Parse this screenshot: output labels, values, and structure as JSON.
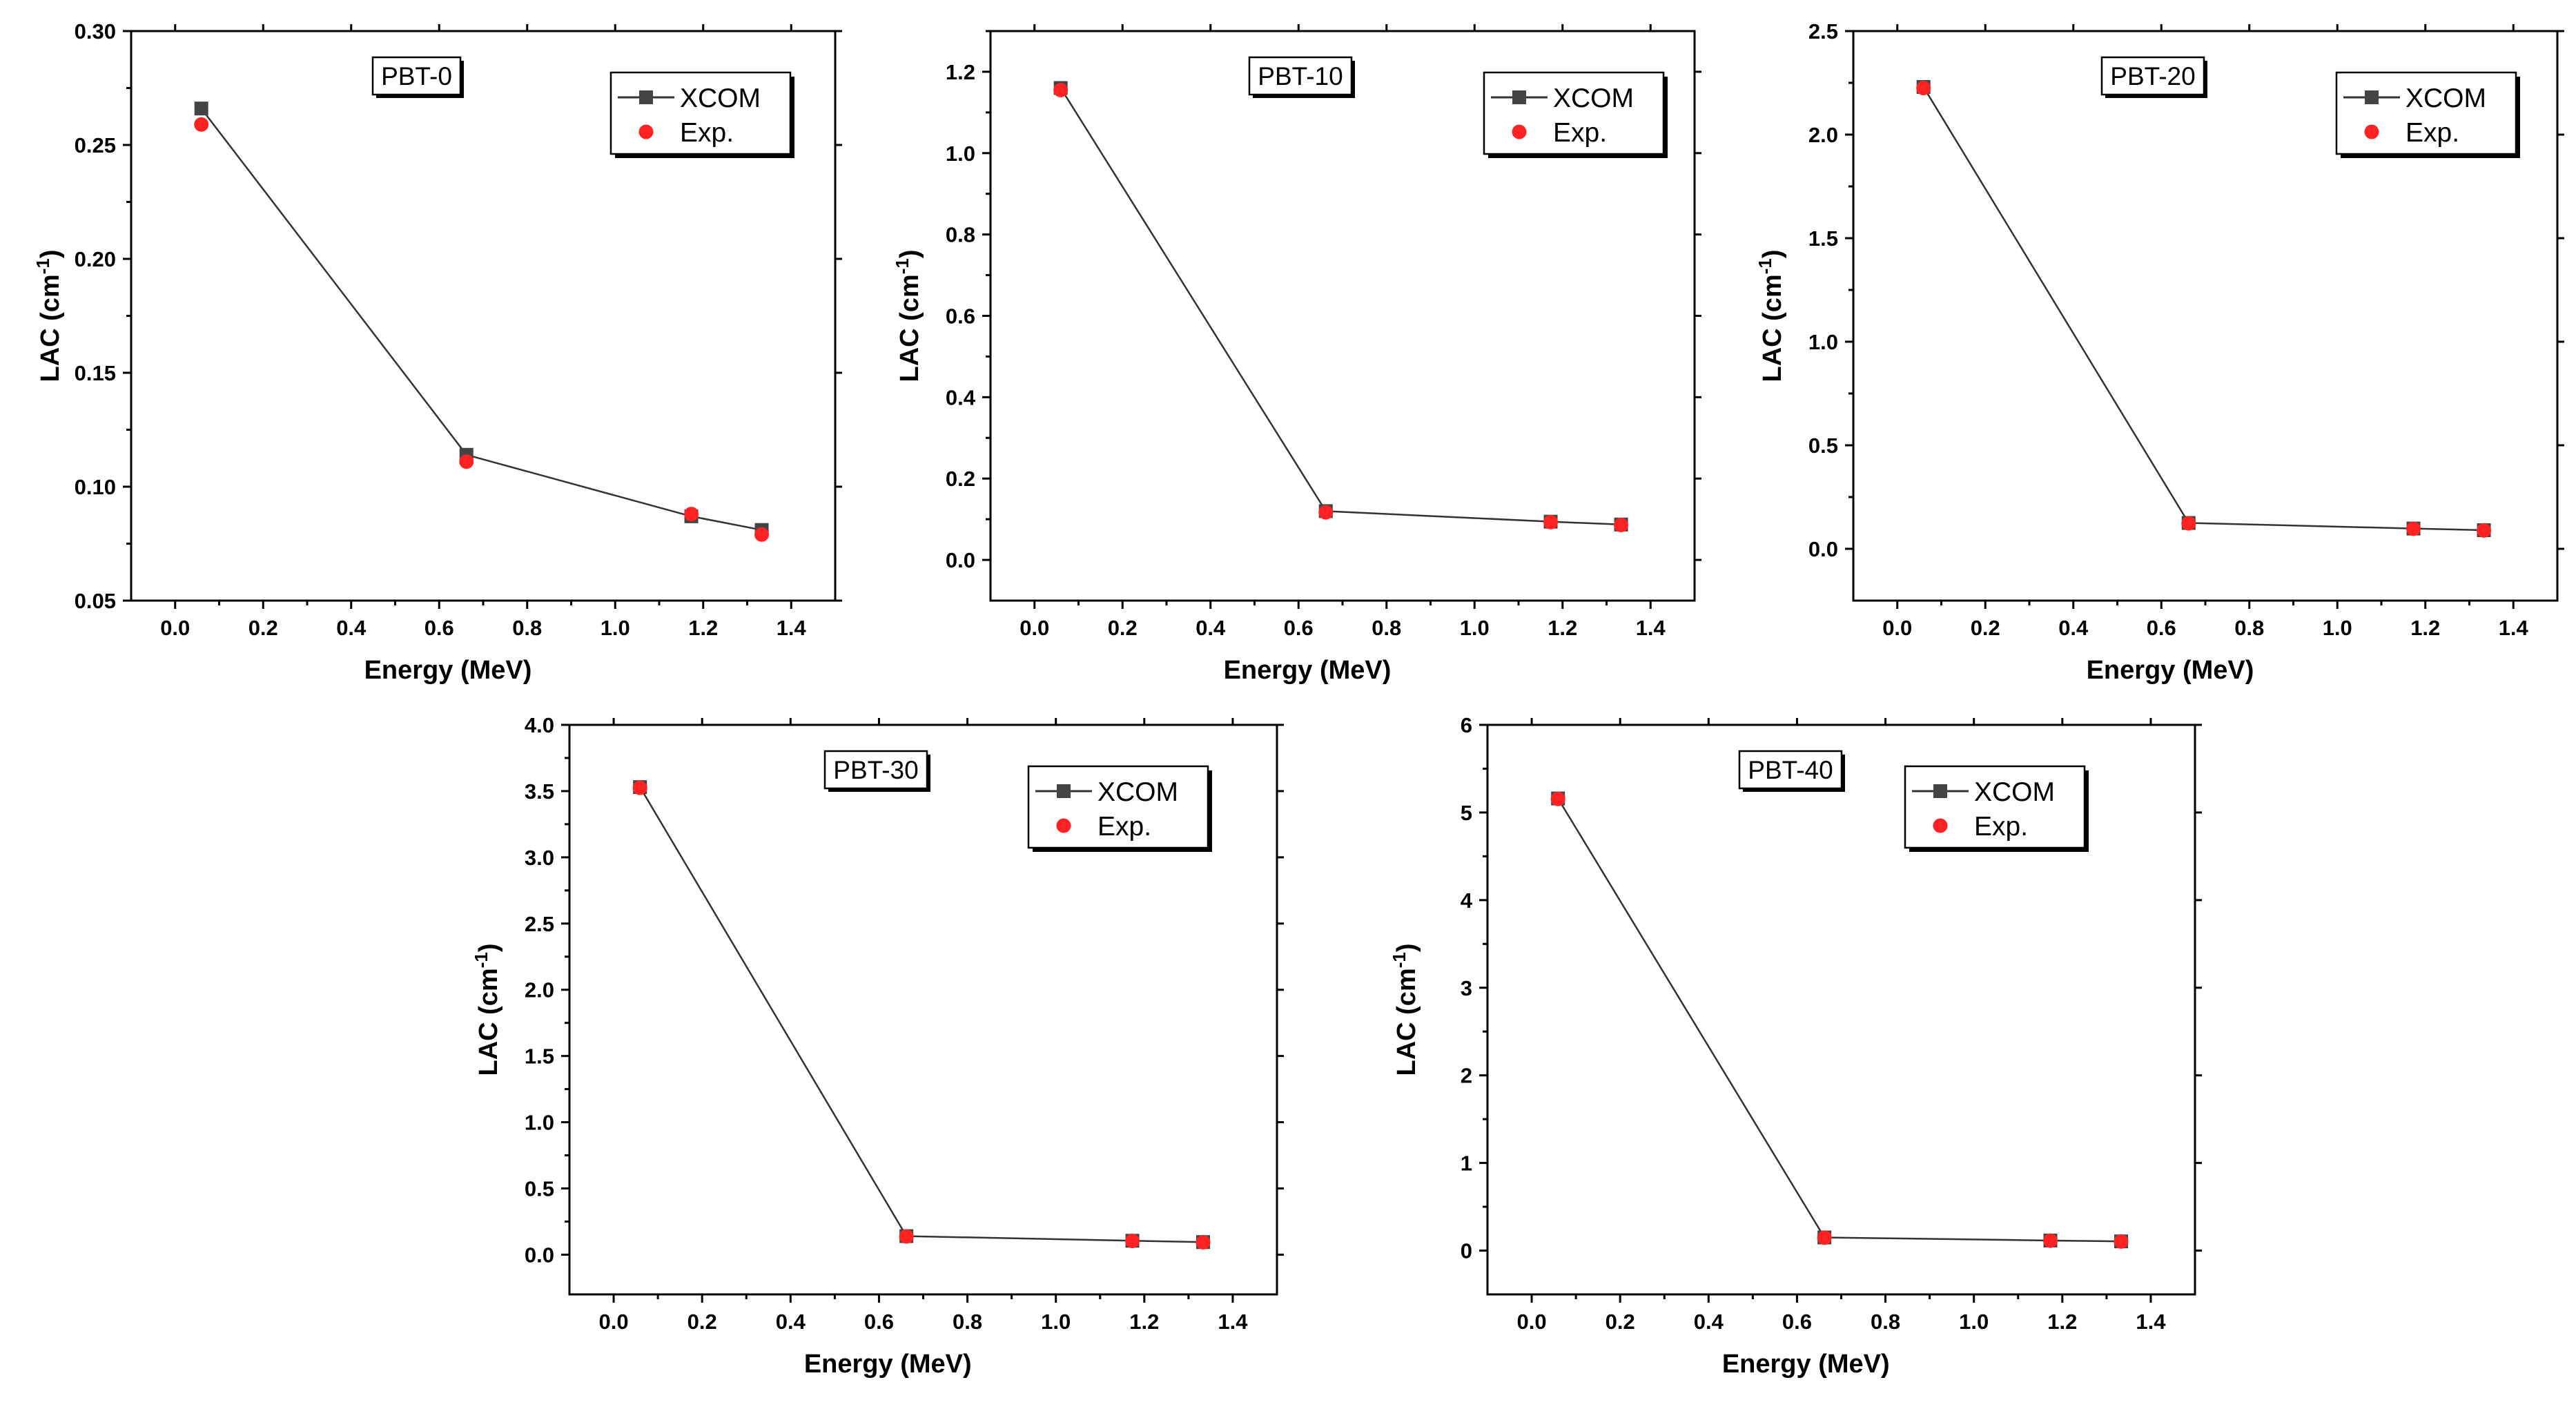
{
  "colors": {
    "xcom": "#444444",
    "exp": "#ff2222",
    "line": "#333333",
    "frame": "#000000"
  },
  "chart_data": [
    {
      "type": "line",
      "title": "PBT-0",
      "xlabel": "Energy (MeV)",
      "ylabel": {
        "main": "LAC (cm",
        "sup": "-1",
        "close": ")"
      },
      "xlim": [
        -0.1,
        1.5
      ],
      "ylim": [
        0.05,
        0.3
      ],
      "xticks": [
        "0.0",
        "0.2",
        "0.4",
        "0.6",
        "0.8",
        "1.0",
        "1.2",
        "1.4"
      ],
      "yticks": [
        "0.05",
        "0.10",
        "0.15",
        "0.20",
        "0.25",
        "0.30"
      ],
      "legend_position": "top-right",
      "x": [
        0.0595,
        0.662,
        1.173,
        1.333
      ],
      "series": [
        {
          "name": "XCOM",
          "values": [
            0.266,
            0.114,
            0.087,
            0.081
          ]
        },
        {
          "name": "Exp.",
          "values": [
            0.259,
            0.111,
            0.088,
            0.079
          ]
        }
      ]
    },
    {
      "type": "line",
      "title": "PBT-10",
      "xlabel": "Energy (MeV)",
      "ylabel": {
        "main": "LAC (cm",
        "sup": "-1",
        "close": ")"
      },
      "xlim": [
        -0.1,
        1.5
      ],
      "ylim": [
        -0.1,
        1.3
      ],
      "xticks": [
        "0.0",
        "0.2",
        "0.4",
        "0.6",
        "0.8",
        "1.0",
        "1.2",
        "1.4"
      ],
      "yticks": [
        "0.0",
        "0.2",
        "0.4",
        "0.6",
        "0.8",
        "1.0",
        "1.2"
      ],
      "legend_position": "top-right",
      "x": [
        0.0595,
        0.662,
        1.173,
        1.333
      ],
      "series": [
        {
          "name": "XCOM",
          "values": [
            1.16,
            0.12,
            0.094,
            0.087
          ]
        },
        {
          "name": "Exp.",
          "values": [
            1.155,
            0.117,
            0.093,
            0.086
          ]
        }
      ]
    },
    {
      "type": "line",
      "title": "PBT-20",
      "xlabel": "Energy (MeV)",
      "ylabel": {
        "main": "LAC (cm",
        "sup": "-1",
        "close": ")"
      },
      "xlim": [
        -0.1,
        1.5
      ],
      "ylim": [
        -0.25,
        2.5
      ],
      "xticks": [
        "0.0",
        "0.2",
        "0.4",
        "0.6",
        "0.8",
        "1.0",
        "1.2",
        "1.4"
      ],
      "yticks": [
        "0.0",
        "0.5",
        "1.0",
        "1.5",
        "2.0",
        "2.5"
      ],
      "legend_position": "top-right",
      "x": [
        0.0595,
        0.662,
        1.173,
        1.333
      ],
      "series": [
        {
          "name": "XCOM",
          "values": [
            2.23,
            0.125,
            0.098,
            0.09
          ]
        },
        {
          "name": "Exp.",
          "values": [
            2.225,
            0.123,
            0.097,
            0.089
          ]
        }
      ]
    },
    {
      "type": "line",
      "title": "PBT-30",
      "xlabel": "Energy (MeV)",
      "ylabel": {
        "main": "LAC (cm",
        "sup": "-1",
        "close": ")"
      },
      "xlim": [
        -0.1,
        1.5
      ],
      "ylim": [
        -0.3,
        4.0
      ],
      "xticks": [
        "0.0",
        "0.2",
        "0.4",
        "0.6",
        "0.8",
        "1.0",
        "1.2",
        "1.4"
      ],
      "yticks": [
        "0.0",
        "0.5",
        "1.0",
        "1.5",
        "2.0",
        "2.5",
        "3.0",
        "3.5",
        "4.0"
      ],
      "legend_position": "top-right",
      "x": [
        0.0595,
        0.662,
        1.173,
        1.333
      ],
      "series": [
        {
          "name": "XCOM",
          "values": [
            3.53,
            0.14,
            0.105,
            0.095
          ]
        },
        {
          "name": "Exp.",
          "values": [
            3.525,
            0.138,
            0.104,
            0.094
          ]
        }
      ]
    },
    {
      "type": "line",
      "title": "PBT-40",
      "xlabel": "Energy (MeV)",
      "ylabel": {
        "main": "LAC (cm",
        "sup": "-1",
        "close": ")"
      },
      "xlim": [
        -0.1,
        1.5
      ],
      "ylim": [
        -0.5,
        6.0
      ],
      "xticks": [
        "0.0",
        "0.2",
        "0.4",
        "0.6",
        "0.8",
        "1.0",
        "1.2",
        "1.4"
      ],
      "yticks": [
        "0",
        "1",
        "2",
        "3",
        "4",
        "5",
        "6"
      ],
      "legend_position": "top-right",
      "x": [
        0.0595,
        0.662,
        1.173,
        1.333
      ],
      "series": [
        {
          "name": "XCOM",
          "values": [
            5.16,
            0.15,
            0.115,
            0.105
          ]
        },
        {
          "name": "Exp.",
          "values": [
            5.155,
            0.148,
            0.114,
            0.104
          ]
        }
      ]
    }
  ]
}
